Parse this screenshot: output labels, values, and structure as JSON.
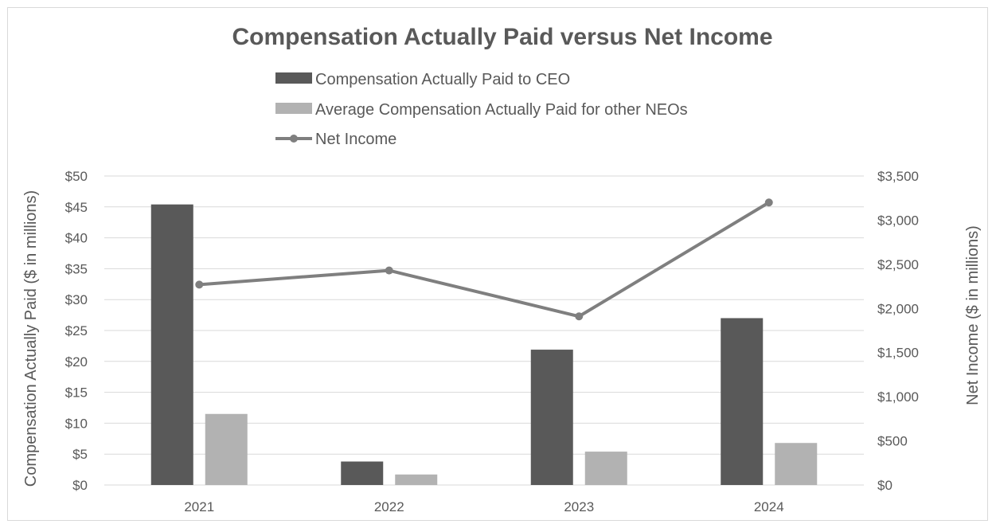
{
  "chart_data": {
    "type": "bar",
    "title": "Compensation Actually Paid versus Net Income",
    "categories": [
      "2021",
      "2022",
      "2023",
      "2024"
    ],
    "series": [
      {
        "name": "Compensation Actually Paid to CEO",
        "type": "bar",
        "axis": "left",
        "color": "#595959",
        "values": [
          45.4,
          3.8,
          21.9,
          27.0
        ]
      },
      {
        "name": "Average Compensation Actually Paid for other NEOs",
        "type": "bar",
        "axis": "left",
        "color": "#b2b2b2",
        "values": [
          11.5,
          1.7,
          5.4,
          6.8
        ]
      },
      {
        "name": "Net Income",
        "type": "line",
        "axis": "right",
        "color": "#7f7f7f",
        "values": [
          2270,
          2430,
          1910,
          3200
        ]
      }
    ],
    "ylabel": "Compensation Actually Paid ($ in millions)",
    "y2label": "Net Income ($ in millions)",
    "ylim": [
      0,
      50
    ],
    "y2lim": [
      0,
      3500
    ],
    "yticks": [
      "$0",
      "$5",
      "$10",
      "$15",
      "$20",
      "$25",
      "$30",
      "$35",
      "$40",
      "$45",
      "$50"
    ],
    "y2ticks": [
      "$0",
      "$500",
      "$1,000",
      "$1,500",
      "$2,000",
      "$2,500",
      "$3,000",
      "$3,500"
    ],
    "grid": true,
    "legend_position": "top"
  }
}
